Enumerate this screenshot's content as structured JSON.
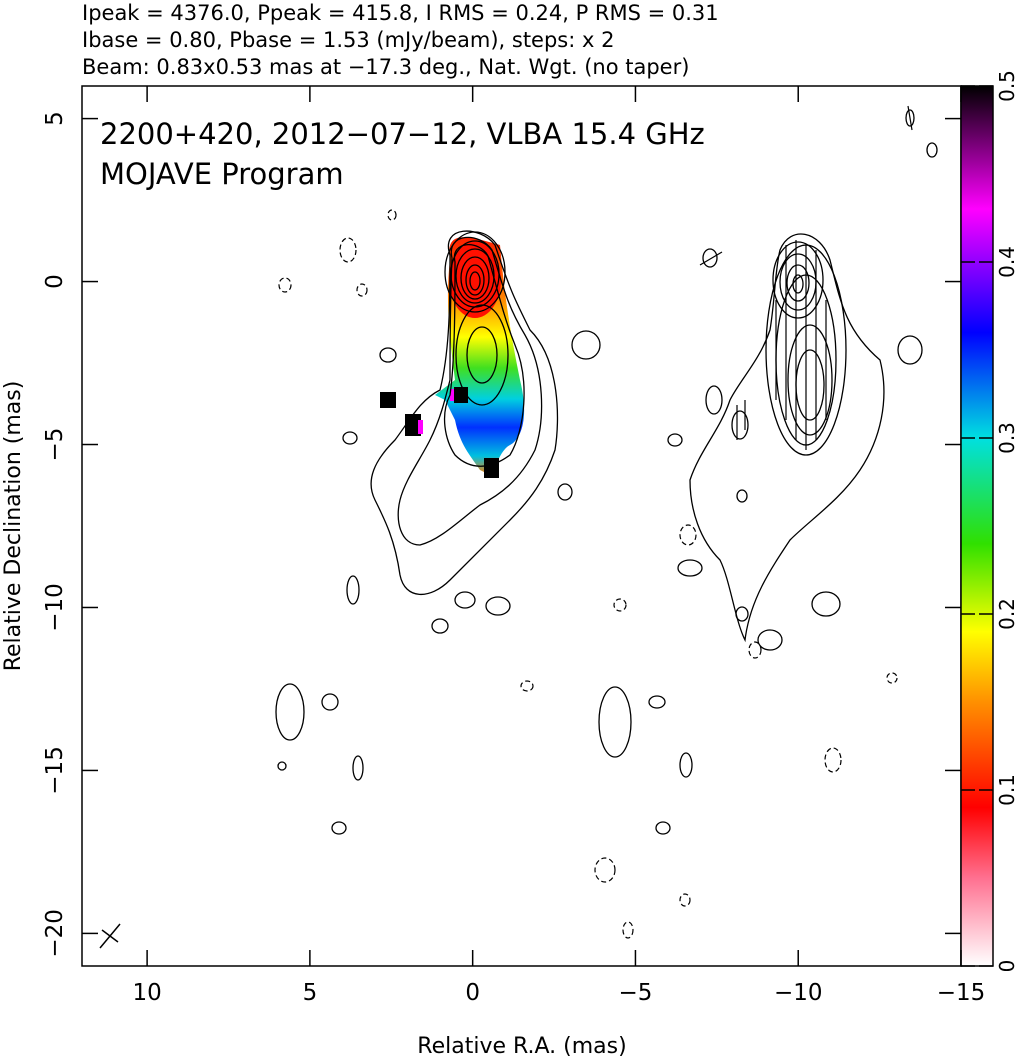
{
  "chart_data": {
    "type": "contour",
    "title_lines": [
      "Ipeak = 4376.0, Ppeak = 415.8, I RMS = 0.24, P RMS = 0.31",
      "Ibase = 0.80, Pbase = 1.53 (mJy/beam), steps: x 2",
      "Beam: 0.83x0.53 mas at −17.3 deg., Nat. Wgt. (no taper)"
    ],
    "annotations": [
      "2200+420, 2012−07−12, VLBA 15.4 GHz",
      "MOJAVE Program"
    ],
    "xlabel": "Relative R.A. (mas)",
    "ylabel": "Relative Declination (mas)",
    "xlim": [
      12,
      -15
    ],
    "xticks": [
      10,
      5,
      0,
      {
        "value": -5,
        "label": "−5"
      },
      {
        "value": -10,
        "label": "−10"
      },
      {
        "value": -15,
        "label": "−15"
      }
    ],
    "ylim": [
      -21,
      6
    ],
    "yticks": [
      5,
      0,
      {
        "value": -5,
        "label": "−5"
      },
      {
        "value": -10,
        "label": "−10"
      },
      {
        "value": -15,
        "label": "−15"
      },
      {
        "value": -20,
        "label": "−20"
      }
    ],
    "colorbar": {
      "lim": [
        0,
        0.5
      ],
      "ticks": [
        0,
        0.1,
        0.2,
        0.3,
        0.4,
        0.5
      ]
    }
  }
}
